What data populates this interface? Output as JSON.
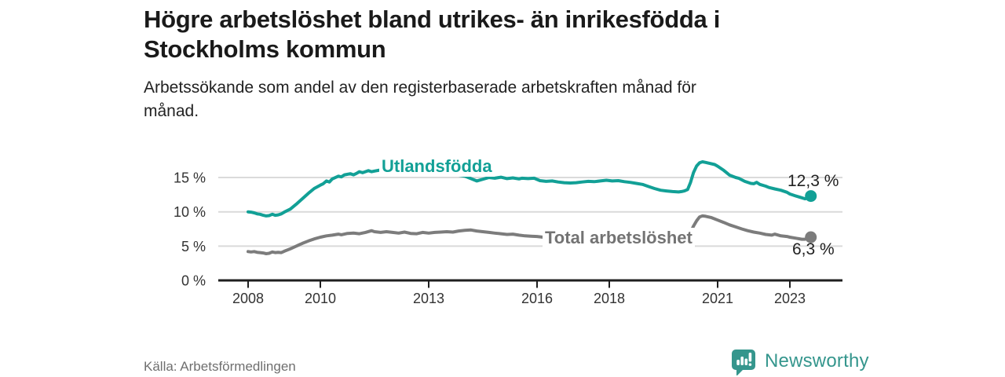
{
  "header": {
    "title_line1": "Högre arbetslöshet bland utrikes- än inrikesfödda i",
    "title_line2": "Stockholms kommun",
    "subtitle_line1": "Arbetssökande som andel av den registerbaserade arbetskraften månad för",
    "subtitle_line2": "månad."
  },
  "footer": {
    "source": "Källa: Arbetsförmedlingen",
    "logo_text": "Newsworthy"
  },
  "colors": {
    "accent_teal": "#12A096",
    "logo_teal": "#35968D",
    "line_gray": "#7C7C7C",
    "label_gray": "#737373",
    "gridline": "#DADADA",
    "axis": "#1F1F1F",
    "tick_text": "#333333"
  },
  "chart_data": {
    "type": "line",
    "title": "Högre arbetslöshet bland utrikes- än inrikesfödda i Stockholms kommun",
    "subtitle": "Arbetssökande som andel av den registerbaserade arbetskraften månad för månad.",
    "unit": "%",
    "xlim": [
      2007.2,
      2024.5
    ],
    "ylim": [
      0,
      18
    ],
    "grid": "horizontal",
    "legend_position": "inline-labels",
    "x_ticks": [
      {
        "value": 2008,
        "label": "2008"
      },
      {
        "value": 2010,
        "label": "2010"
      },
      {
        "value": 2013,
        "label": "2013"
      },
      {
        "value": 2016,
        "label": "2016"
      },
      {
        "value": 2018,
        "label": "2018"
      },
      {
        "value": 2021,
        "label": "2021"
      },
      {
        "value": 2023,
        "label": "2023"
      }
    ],
    "y_ticks": [
      {
        "value": 0,
        "label": "0 %"
      },
      {
        "value": 5,
        "label": "5 %"
      },
      {
        "value": 10,
        "label": "10 %"
      },
      {
        "value": 15,
        "label": "15 %"
      }
    ],
    "series": [
      {
        "name": "Utlandsfödda",
        "label": "Utlandsfödda",
        "end_label": "12,3 %",
        "end_value": 12.3,
        "color": "#12A096",
        "points": [
          [
            2008.0,
            10.0
          ],
          [
            2008.08,
            9.95
          ],
          [
            2008.17,
            9.85
          ],
          [
            2008.25,
            9.7
          ],
          [
            2008.33,
            9.65
          ],
          [
            2008.42,
            9.5
          ],
          [
            2008.5,
            9.4
          ],
          [
            2008.58,
            9.45
          ],
          [
            2008.67,
            9.65
          ],
          [
            2008.75,
            9.5
          ],
          [
            2008.83,
            9.55
          ],
          [
            2008.92,
            9.7
          ],
          [
            2009.0,
            9.95
          ],
          [
            2009.17,
            10.4
          ],
          [
            2009.33,
            11.1
          ],
          [
            2009.5,
            11.9
          ],
          [
            2009.67,
            12.7
          ],
          [
            2009.83,
            13.4
          ],
          [
            2010.0,
            13.9
          ],
          [
            2010.08,
            14.1
          ],
          [
            2010.17,
            14.5
          ],
          [
            2010.25,
            14.35
          ],
          [
            2010.33,
            14.8
          ],
          [
            2010.5,
            15.2
          ],
          [
            2010.58,
            15.1
          ],
          [
            2010.67,
            15.4
          ],
          [
            2010.83,
            15.55
          ],
          [
            2010.92,
            15.4
          ],
          [
            2011.0,
            15.6
          ],
          [
            2011.08,
            15.85
          ],
          [
            2011.17,
            15.7
          ],
          [
            2011.33,
            16.0
          ],
          [
            2011.42,
            15.85
          ],
          [
            2011.5,
            15.95
          ],
          [
            2011.67,
            16.1
          ],
          [
            2011.83,
            15.95
          ],
          [
            2011.92,
            16.1
          ],
          [
            2012.0,
            16.05
          ],
          [
            2012.17,
            15.9
          ],
          [
            2012.33,
            16.05
          ],
          [
            2012.5,
            15.8
          ],
          [
            2012.67,
            15.75
          ],
          [
            2012.83,
            15.9
          ],
          [
            2013.0,
            15.75
          ],
          [
            2013.17,
            15.8
          ],
          [
            2013.33,
            15.6
          ],
          [
            2013.5,
            15.55
          ],
          [
            2013.67,
            15.6
          ],
          [
            2013.83,
            15.35
          ],
          [
            2014.0,
            15.2
          ],
          [
            2014.17,
            14.85
          ],
          [
            2014.33,
            14.5
          ],
          [
            2014.5,
            14.75
          ],
          [
            2014.67,
            15.0
          ],
          [
            2014.83,
            14.9
          ],
          [
            2015.0,
            15.05
          ],
          [
            2015.17,
            14.85
          ],
          [
            2015.33,
            14.95
          ],
          [
            2015.5,
            14.8
          ],
          [
            2015.58,
            14.9
          ],
          [
            2015.75,
            14.85
          ],
          [
            2015.92,
            14.9
          ],
          [
            2016.08,
            14.55
          ],
          [
            2016.25,
            14.45
          ],
          [
            2016.42,
            14.5
          ],
          [
            2016.58,
            14.35
          ],
          [
            2016.75,
            14.25
          ],
          [
            2016.92,
            14.2
          ],
          [
            2017.08,
            14.25
          ],
          [
            2017.25,
            14.35
          ],
          [
            2017.42,
            14.45
          ],
          [
            2017.58,
            14.4
          ],
          [
            2017.75,
            14.5
          ],
          [
            2017.92,
            14.6
          ],
          [
            2018.08,
            14.5
          ],
          [
            2018.25,
            14.55
          ],
          [
            2018.42,
            14.4
          ],
          [
            2018.58,
            14.3
          ],
          [
            2018.75,
            14.15
          ],
          [
            2018.92,
            14.0
          ],
          [
            2019.08,
            13.7
          ],
          [
            2019.25,
            13.4
          ],
          [
            2019.42,
            13.15
          ],
          [
            2019.58,
            13.05
          ],
          [
            2019.75,
            12.95
          ],
          [
            2019.92,
            12.9
          ],
          [
            2020.0,
            12.95
          ],
          [
            2020.08,
            13.05
          ],
          [
            2020.17,
            13.25
          ],
          [
            2020.25,
            14.3
          ],
          [
            2020.33,
            15.7
          ],
          [
            2020.42,
            16.7
          ],
          [
            2020.5,
            17.15
          ],
          [
            2020.58,
            17.3
          ],
          [
            2020.67,
            17.2
          ],
          [
            2020.75,
            17.1
          ],
          [
            2020.92,
            16.9
          ],
          [
            2021.0,
            16.65
          ],
          [
            2021.17,
            16.05
          ],
          [
            2021.25,
            15.7
          ],
          [
            2021.33,
            15.35
          ],
          [
            2021.5,
            15.0
          ],
          [
            2021.58,
            14.9
          ],
          [
            2021.75,
            14.45
          ],
          [
            2021.92,
            14.15
          ],
          [
            2022.0,
            14.1
          ],
          [
            2022.08,
            14.3
          ],
          [
            2022.17,
            14.0
          ],
          [
            2022.33,
            13.75
          ],
          [
            2022.42,
            13.55
          ],
          [
            2022.58,
            13.35
          ],
          [
            2022.75,
            13.15
          ],
          [
            2022.92,
            12.85
          ],
          [
            2023.0,
            12.6
          ],
          [
            2023.17,
            12.3
          ],
          [
            2023.33,
            12.05
          ],
          [
            2023.42,
            11.9
          ],
          [
            2023.5,
            12.0
          ],
          [
            2023.58,
            12.3
          ]
        ]
      },
      {
        "name": "Total arbetslöshet",
        "label": "Total arbetslöshet",
        "end_label": "6,3 %",
        "end_value": 6.3,
        "color": "#7C7C7C",
        "points": [
          [
            2008.0,
            4.2
          ],
          [
            2008.08,
            4.15
          ],
          [
            2008.17,
            4.2
          ],
          [
            2008.25,
            4.1
          ],
          [
            2008.33,
            4.05
          ],
          [
            2008.42,
            4.0
          ],
          [
            2008.5,
            3.9
          ],
          [
            2008.58,
            3.95
          ],
          [
            2008.67,
            4.15
          ],
          [
            2008.75,
            4.05
          ],
          [
            2008.83,
            4.1
          ],
          [
            2008.92,
            4.05
          ],
          [
            2009.0,
            4.25
          ],
          [
            2009.17,
            4.6
          ],
          [
            2009.33,
            5.0
          ],
          [
            2009.5,
            5.4
          ],
          [
            2009.67,
            5.75
          ],
          [
            2009.83,
            6.05
          ],
          [
            2010.0,
            6.3
          ],
          [
            2010.17,
            6.5
          ],
          [
            2010.33,
            6.6
          ],
          [
            2010.5,
            6.75
          ],
          [
            2010.58,
            6.65
          ],
          [
            2010.75,
            6.85
          ],
          [
            2010.92,
            6.9
          ],
          [
            2011.08,
            6.8
          ],
          [
            2011.25,
            7.0
          ],
          [
            2011.42,
            7.25
          ],
          [
            2011.5,
            7.1
          ],
          [
            2011.67,
            7.0
          ],
          [
            2011.83,
            7.1
          ],
          [
            2012.0,
            7.0
          ],
          [
            2012.17,
            6.9
          ],
          [
            2012.33,
            7.05
          ],
          [
            2012.5,
            6.85
          ],
          [
            2012.67,
            6.8
          ],
          [
            2012.83,
            7.0
          ],
          [
            2013.0,
            6.9
          ],
          [
            2013.17,
            7.0
          ],
          [
            2013.33,
            7.05
          ],
          [
            2013.5,
            7.1
          ],
          [
            2013.67,
            7.05
          ],
          [
            2013.83,
            7.2
          ],
          [
            2014.0,
            7.3
          ],
          [
            2014.17,
            7.35
          ],
          [
            2014.33,
            7.2
          ],
          [
            2014.5,
            7.1
          ],
          [
            2014.67,
            7.0
          ],
          [
            2014.83,
            6.9
          ],
          [
            2015.0,
            6.8
          ],
          [
            2015.17,
            6.7
          ],
          [
            2015.33,
            6.75
          ],
          [
            2015.5,
            6.6
          ],
          [
            2015.67,
            6.5
          ],
          [
            2015.83,
            6.45
          ],
          [
            2016.0,
            6.4
          ],
          [
            2016.17,
            6.3
          ],
          [
            2016.33,
            6.25
          ],
          [
            2016.5,
            6.2
          ],
          [
            2016.67,
            6.15
          ],
          [
            2016.83,
            6.1
          ],
          [
            2017.0,
            6.15
          ],
          [
            2017.17,
            6.1
          ],
          [
            2017.33,
            6.15
          ],
          [
            2017.5,
            6.1
          ],
          [
            2017.67,
            6.15
          ],
          [
            2017.83,
            6.2
          ],
          [
            2018.0,
            6.25
          ],
          [
            2018.17,
            6.3
          ],
          [
            2018.33,
            6.25
          ],
          [
            2018.5,
            6.2
          ],
          [
            2018.67,
            6.15
          ],
          [
            2018.83,
            6.1
          ],
          [
            2019.0,
            6.05
          ],
          [
            2019.17,
            6.0
          ],
          [
            2019.33,
            5.95
          ],
          [
            2019.5,
            5.9
          ],
          [
            2019.67,
            5.9
          ],
          [
            2019.83,
            5.95
          ],
          [
            2020.0,
            6.0
          ],
          [
            2020.08,
            6.1
          ],
          [
            2020.17,
            6.35
          ],
          [
            2020.25,
            7.0
          ],
          [
            2020.33,
            7.9
          ],
          [
            2020.42,
            8.7
          ],
          [
            2020.5,
            9.25
          ],
          [
            2020.58,
            9.4
          ],
          [
            2020.67,
            9.35
          ],
          [
            2020.83,
            9.15
          ],
          [
            2021.0,
            8.8
          ],
          [
            2021.17,
            8.45
          ],
          [
            2021.33,
            8.1
          ],
          [
            2021.5,
            7.8
          ],
          [
            2021.67,
            7.5
          ],
          [
            2021.83,
            7.25
          ],
          [
            2022.0,
            7.05
          ],
          [
            2022.17,
            6.9
          ],
          [
            2022.33,
            6.7
          ],
          [
            2022.5,
            6.6
          ],
          [
            2022.58,
            6.75
          ],
          [
            2022.75,
            6.5
          ],
          [
            2022.92,
            6.4
          ],
          [
            2023.0,
            6.3
          ],
          [
            2023.17,
            6.15
          ],
          [
            2023.33,
            6.0
          ],
          [
            2023.42,
            6.0
          ],
          [
            2023.5,
            6.1
          ],
          [
            2023.58,
            6.3
          ]
        ]
      }
    ]
  }
}
